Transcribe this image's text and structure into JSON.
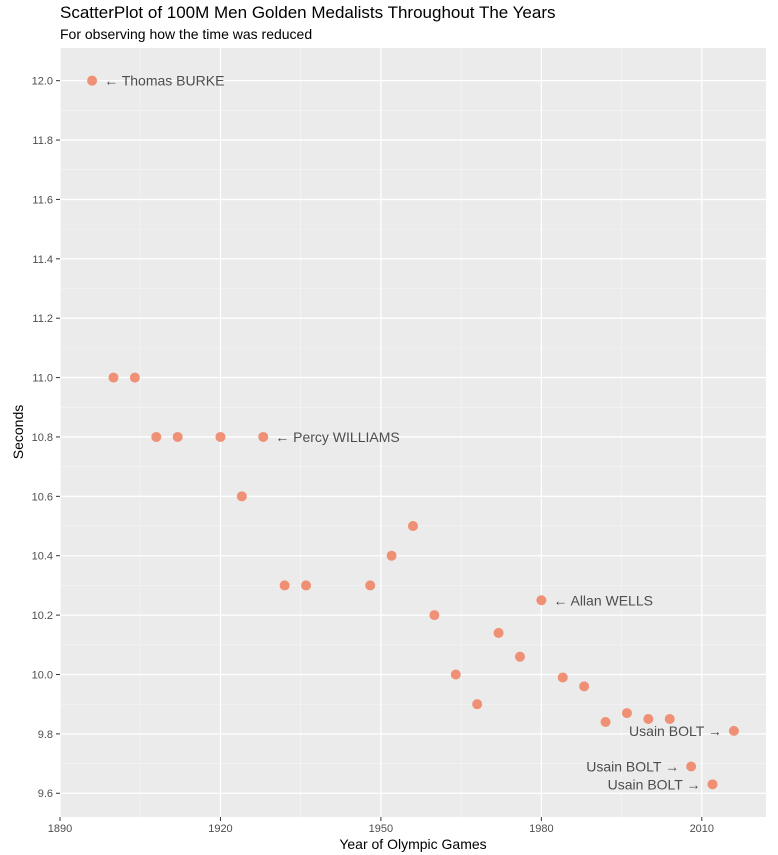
{
  "chart_data": {
    "type": "scatter",
    "title": "ScatterPlot of 100M Men Golden Medalists Throughout The Years",
    "subtitle": "For observing how the time was reduced",
    "xlabel": "Year of Olympic Games",
    "ylabel": "Seconds",
    "xlim": [
      1890,
      2022
    ],
    "ylim": [
      9.52,
      12.11
    ],
    "x_ticks": [
      1890,
      1920,
      1950,
      1980,
      2010
    ],
    "y_ticks": [
      9.6,
      9.8,
      10.0,
      10.2,
      10.4,
      10.6,
      10.8,
      11.0,
      11.2,
      11.4,
      11.6,
      11.8,
      12.0
    ],
    "grid": true,
    "legend": "none",
    "point_color": "#f08060",
    "panel_color": "#ebebeb",
    "points": [
      {
        "x": 1896,
        "y": 12.0
      },
      {
        "x": 1900,
        "y": 11.0
      },
      {
        "x": 1904,
        "y": 11.0
      },
      {
        "x": 1908,
        "y": 10.8
      },
      {
        "x": 1912,
        "y": 10.8
      },
      {
        "x": 1920,
        "y": 10.8
      },
      {
        "x": 1924,
        "y": 10.6
      },
      {
        "x": 1928,
        "y": 10.8
      },
      {
        "x": 1932,
        "y": 10.3
      },
      {
        "x": 1936,
        "y": 10.3
      },
      {
        "x": 1948,
        "y": 10.3
      },
      {
        "x": 1952,
        "y": 10.4
      },
      {
        "x": 1956,
        "y": 10.5
      },
      {
        "x": 1960,
        "y": 10.2
      },
      {
        "x": 1964,
        "y": 10.0
      },
      {
        "x": 1968,
        "y": 9.9
      },
      {
        "x": 1972,
        "y": 10.14
      },
      {
        "x": 1976,
        "y": 10.06
      },
      {
        "x": 1980,
        "y": 10.25
      },
      {
        "x": 1984,
        "y": 9.99
      },
      {
        "x": 1988,
        "y": 9.96
      },
      {
        "x": 1992,
        "y": 9.84
      },
      {
        "x": 1996,
        "y": 9.87
      },
      {
        "x": 2000,
        "y": 9.85
      },
      {
        "x": 2004,
        "y": 9.85
      },
      {
        "x": 2008,
        "y": 9.69
      },
      {
        "x": 2012,
        "y": 9.63
      },
      {
        "x": 2016,
        "y": 9.81
      }
    ],
    "annotations": [
      {
        "x": 1896,
        "y": 12.0,
        "text": "← Thomas BURKE",
        "side": "right"
      },
      {
        "x": 1928,
        "y": 10.8,
        "text": "← Percy WILLIAMS",
        "side": "right"
      },
      {
        "x": 1980,
        "y": 10.25,
        "text": "← Allan WELLS",
        "side": "right"
      },
      {
        "x": 2016,
        "y": 9.81,
        "text": "Usain BOLT →",
        "side": "left"
      },
      {
        "x": 2008,
        "y": 9.69,
        "text": "Usain BOLT →",
        "side": "left"
      },
      {
        "x": 2012,
        "y": 9.63,
        "text": "Usain BOLT →",
        "side": "left"
      }
    ]
  }
}
